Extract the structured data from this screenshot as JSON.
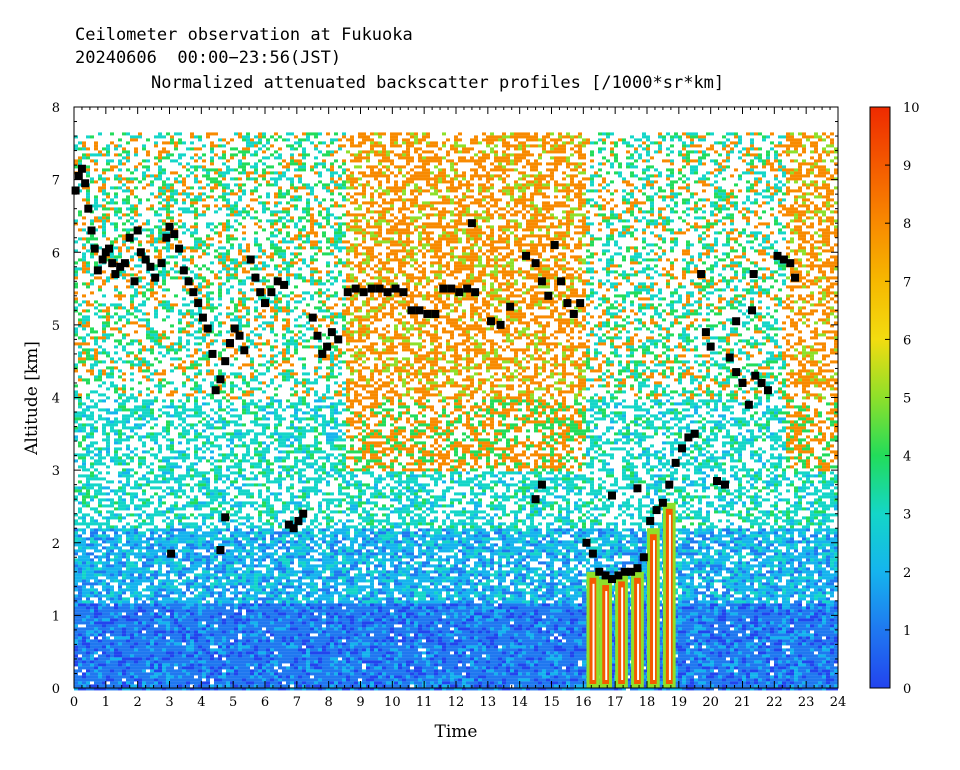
{
  "header": {
    "line1": "Ceilometer observation at Fukuoka",
    "line2": "20240606  00:00−23:56(JST)",
    "line3": "Normalized attenuated backscatter profiles [/1000*sr*km]"
  },
  "chart_data": {
    "type": "heatmap",
    "title": "Normalized attenuated backscatter profiles [/1000*sr*km]",
    "xlabel": "Time",
    "ylabel": "Altitude [km]",
    "xlim": [
      0,
      24
    ],
    "ylim": [
      0,
      8
    ],
    "x_ticks": [
      "0",
      "1",
      "2",
      "3",
      "4",
      "5",
      "6",
      "7",
      "8",
      "9",
      "10",
      "11",
      "12",
      "13",
      "14",
      "15",
      "16",
      "17",
      "18",
      "19",
      "20",
      "21",
      "22",
      "23",
      "24"
    ],
    "y_ticks": [
      "0",
      "1",
      "2",
      "3",
      "4",
      "5",
      "6",
      "7",
      "8"
    ],
    "colorbar": {
      "range": [
        0,
        10
      ],
      "ticks": [
        "0",
        "1",
        "2",
        "3",
        "4",
        "5",
        "6",
        "7",
        "8",
        "9",
        "10"
      ],
      "colors": [
        "#2244ee",
        "#1f78f0",
        "#15b4ee",
        "#14d6c8",
        "#22dc5a",
        "#8ee02a",
        "#f2dc10",
        "#f6b800",
        "#f88a00",
        "#f45a00",
        "#ee2a00"
      ]
    },
    "data_top_km": 7.65,
    "cloud_base_heights": [
      {
        "t": 0.05,
        "h": 6.85
      },
      {
        "t": 0.15,
        "h": 7.05
      },
      {
        "t": 0.25,
        "h": 7.15
      },
      {
        "t": 0.35,
        "h": 6.95
      },
      {
        "t": 0.45,
        "h": 6.6
      },
      {
        "t": 0.55,
        "h": 6.3
      },
      {
        "t": 0.65,
        "h": 6.05
      },
      {
        "t": 0.75,
        "h": 5.75
      },
      {
        "t": 0.9,
        "h": 5.9
      },
      {
        "t": 1.0,
        "h": 6.0
      },
      {
        "t": 1.1,
        "h": 6.05
      },
      {
        "t": 1.2,
        "h": 5.85
      },
      {
        "t": 1.3,
        "h": 5.7
      },
      {
        "t": 1.45,
        "h": 5.8
      },
      {
        "t": 1.6,
        "h": 5.85
      },
      {
        "t": 1.75,
        "h": 6.2
      },
      {
        "t": 1.9,
        "h": 5.6
      },
      {
        "t": 2.0,
        "h": 6.3
      },
      {
        "t": 2.1,
        "h": 6.0
      },
      {
        "t": 2.25,
        "h": 5.9
      },
      {
        "t": 2.4,
        "h": 5.8
      },
      {
        "t": 2.55,
        "h": 5.65
      },
      {
        "t": 2.75,
        "h": 5.85
      },
      {
        "t": 2.9,
        "h": 6.2
      },
      {
        "t": 3.0,
        "h": 6.35
      },
      {
        "t": 3.15,
        "h": 6.25
      },
      {
        "t": 3.3,
        "h": 6.05
      },
      {
        "t": 3.45,
        "h": 5.75
      },
      {
        "t": 3.6,
        "h": 5.6
      },
      {
        "t": 3.75,
        "h": 5.45
      },
      {
        "t": 3.9,
        "h": 5.3
      },
      {
        "t": 4.05,
        "h": 5.1
      },
      {
        "t": 4.2,
        "h": 4.95
      },
      {
        "t": 4.35,
        "h": 4.6
      },
      {
        "t": 4.45,
        "h": 4.1
      },
      {
        "t": 4.6,
        "h": 4.25
      },
      {
        "t": 4.75,
        "h": 4.5
      },
      {
        "t": 4.9,
        "h": 4.75
      },
      {
        "t": 5.05,
        "h": 4.95
      },
      {
        "t": 5.2,
        "h": 4.85
      },
      {
        "t": 5.35,
        "h": 4.65
      },
      {
        "t": 5.55,
        "h": 5.9
      },
      {
        "t": 5.7,
        "h": 5.65
      },
      {
        "t": 5.85,
        "h": 5.45
      },
      {
        "t": 6.0,
        "h": 5.3
      },
      {
        "t": 6.2,
        "h": 5.45
      },
      {
        "t": 6.4,
        "h": 5.6
      },
      {
        "t": 6.6,
        "h": 5.55
      },
      {
        "t": 6.75,
        "h": 2.25
      },
      {
        "t": 6.9,
        "h": 2.2
      },
      {
        "t": 7.05,
        "h": 2.3
      },
      {
        "t": 7.2,
        "h": 2.4
      },
      {
        "t": 7.5,
        "h": 5.1
      },
      {
        "t": 7.65,
        "h": 4.85
      },
      {
        "t": 7.8,
        "h": 4.6
      },
      {
        "t": 7.95,
        "h": 4.7
      },
      {
        "t": 8.1,
        "h": 4.9
      },
      {
        "t": 8.3,
        "h": 4.8
      },
      {
        "t": 8.6,
        "h": 5.45
      },
      {
        "t": 8.85,
        "h": 5.5
      },
      {
        "t": 9.1,
        "h": 5.45
      },
      {
        "t": 9.35,
        "h": 5.5
      },
      {
        "t": 9.6,
        "h": 5.5
      },
      {
        "t": 9.85,
        "h": 5.45
      },
      {
        "t": 10.1,
        "h": 5.5
      },
      {
        "t": 10.35,
        "h": 5.45
      },
      {
        "t": 10.6,
        "h": 5.2
      },
      {
        "t": 10.85,
        "h": 5.2
      },
      {
        "t": 11.1,
        "h": 5.15
      },
      {
        "t": 11.35,
        "h": 5.15
      },
      {
        "t": 11.6,
        "h": 5.5
      },
      {
        "t": 11.85,
        "h": 5.5
      },
      {
        "t": 12.1,
        "h": 5.45
      },
      {
        "t": 12.35,
        "h": 5.5
      },
      {
        "t": 12.6,
        "h": 5.45
      },
      {
        "t": 12.5,
        "h": 6.4
      },
      {
        "t": 13.1,
        "h": 5.05
      },
      {
        "t": 13.4,
        "h": 5.0
      },
      {
        "t": 13.7,
        "h": 5.25
      },
      {
        "t": 14.2,
        "h": 5.95
      },
      {
        "t": 14.5,
        "h": 5.85
      },
      {
        "t": 14.7,
        "h": 5.6
      },
      {
        "t": 14.9,
        "h": 5.4
      },
      {
        "t": 15.1,
        "h": 6.1
      },
      {
        "t": 15.3,
        "h": 5.6
      },
      {
        "t": 15.5,
        "h": 5.3
      },
      {
        "t": 15.7,
        "h": 5.15
      },
      {
        "t": 15.9,
        "h": 5.3
      },
      {
        "t": 14.5,
        "h": 2.6
      },
      {
        "t": 14.7,
        "h": 2.8
      },
      {
        "t": 16.1,
        "h": 2.0
      },
      {
        "t": 16.3,
        "h": 1.85
      },
      {
        "t": 16.5,
        "h": 1.6
      },
      {
        "t": 16.7,
        "h": 1.55
      },
      {
        "t": 16.9,
        "h": 1.5
      },
      {
        "t": 17.1,
        "h": 1.55
      },
      {
        "t": 17.3,
        "h": 1.6
      },
      {
        "t": 17.5,
        "h": 1.6
      },
      {
        "t": 17.7,
        "h": 1.65
      },
      {
        "t": 17.9,
        "h": 1.8
      },
      {
        "t": 18.1,
        "h": 2.3
      },
      {
        "t": 18.3,
        "h": 2.45
      },
      {
        "t": 18.5,
        "h": 2.55
      },
      {
        "t": 18.7,
        "h": 2.8
      },
      {
        "t": 18.9,
        "h": 3.1
      },
      {
        "t": 19.1,
        "h": 3.3
      },
      {
        "t": 19.3,
        "h": 3.45
      },
      {
        "t": 19.5,
        "h": 3.5
      },
      {
        "t": 16.9,
        "h": 2.65
      },
      {
        "t": 17.7,
        "h": 2.75
      },
      {
        "t": 19.7,
        "h": 5.7
      },
      {
        "t": 19.85,
        "h": 4.9
      },
      {
        "t": 20.0,
        "h": 4.7
      },
      {
        "t": 20.2,
        "h": 2.85
      },
      {
        "t": 20.45,
        "h": 2.8
      },
      {
        "t": 20.6,
        "h": 4.55
      },
      {
        "t": 20.8,
        "h": 4.35
      },
      {
        "t": 21.0,
        "h": 4.2
      },
      {
        "t": 21.2,
        "h": 3.9
      },
      {
        "t": 21.4,
        "h": 4.3
      },
      {
        "t": 21.6,
        "h": 4.2
      },
      {
        "t": 21.8,
        "h": 4.1
      },
      {
        "t": 20.8,
        "h": 5.05
      },
      {
        "t": 21.3,
        "h": 5.2
      },
      {
        "t": 21.35,
        "h": 5.7
      },
      {
        "t": 22.1,
        "h": 5.95
      },
      {
        "t": 22.3,
        "h": 5.9
      },
      {
        "t": 22.5,
        "h": 5.85
      },
      {
        "t": 22.65,
        "h": 5.65
      },
      {
        "t": 3.05,
        "h": 1.85
      },
      {
        "t": 4.6,
        "h": 1.9
      },
      {
        "t": 4.75,
        "h": 2.35
      }
    ],
    "high_signal_regions": [
      {
        "t": 16.1,
        "h_top": 1.6
      },
      {
        "t": 16.5,
        "h_top": 1.5
      },
      {
        "t": 17.0,
        "h_top": 1.55
      },
      {
        "t": 17.5,
        "h_top": 1.6
      },
      {
        "t": 18.0,
        "h_top": 2.2
      },
      {
        "t": 18.5,
        "h_top": 2.55
      }
    ]
  }
}
